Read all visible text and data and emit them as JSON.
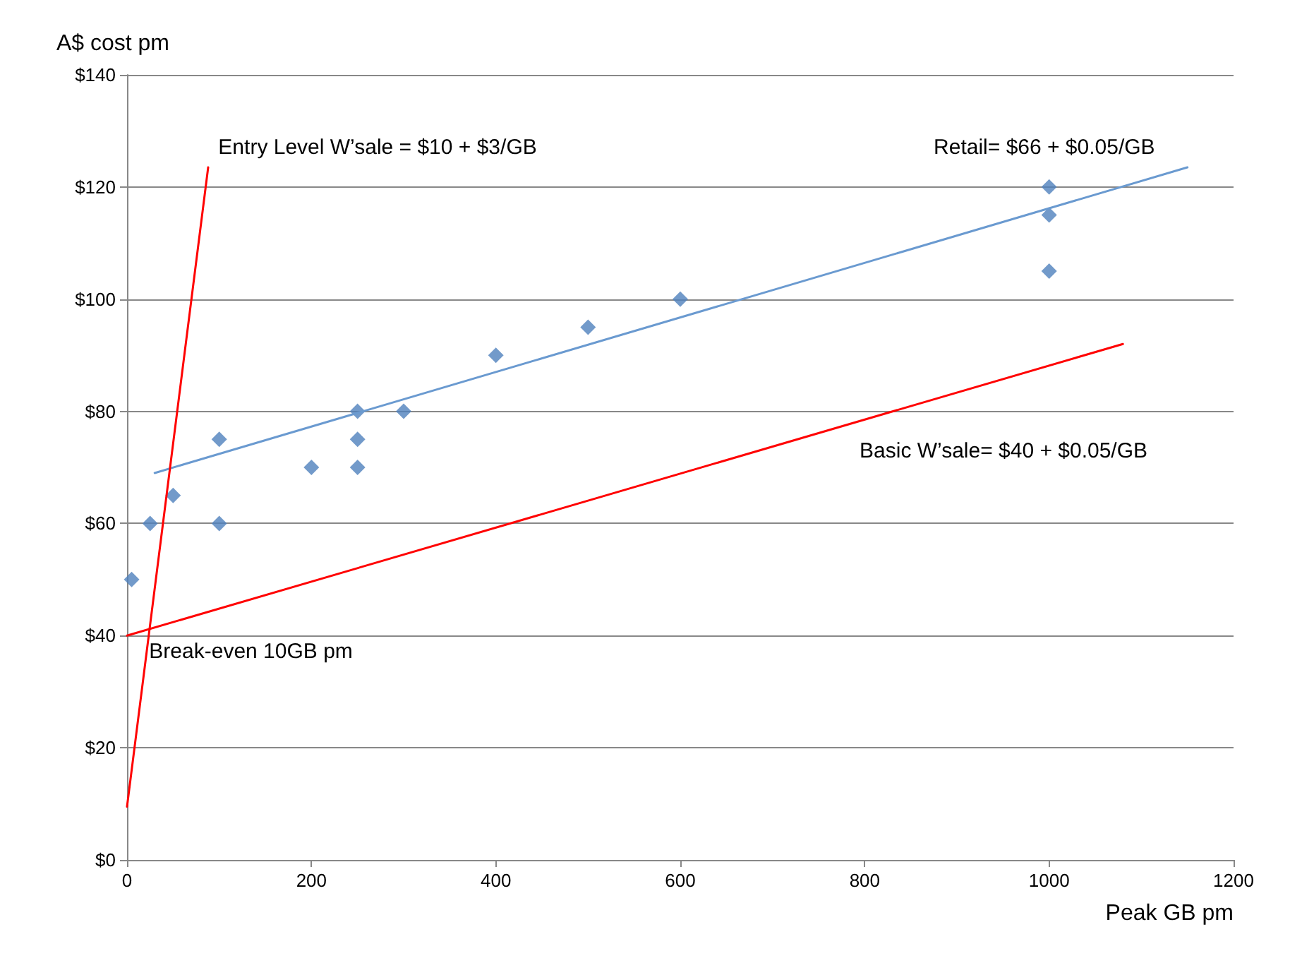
{
  "chart_data": {
    "type": "scatter",
    "xlabel": "Peak GB pm",
    "ylabel": "A$ cost pm",
    "xlim": [
      0,
      1200
    ],
    "xticks": [
      0,
      200,
      400,
      600,
      800,
      1000,
      1200
    ],
    "ylim": [
      0,
      140
    ],
    "yticks": [
      {
        "value": 0,
        "label": "$0"
      },
      {
        "value": 20,
        "label": "$20"
      },
      {
        "value": 40,
        "label": "$40"
      },
      {
        "value": 60,
        "label": "$60"
      },
      {
        "value": 80,
        "label": "$80"
      },
      {
        "value": 100,
        "label": "$100"
      },
      {
        "value": 120,
        "label": "$120"
      },
      {
        "value": 140,
        "label": "$140"
      }
    ],
    "grid": "y",
    "series": [
      {
        "marker": "diamond",
        "color": "#4f81bd",
        "x": [
          5,
          25,
          50,
          100,
          100,
          200,
          250,
          250,
          250,
          300,
          400,
          500,
          600,
          1000,
          1000,
          1000
        ],
        "values": [
          50,
          60,
          65,
          75,
          60,
          70,
          80,
          75,
          70,
          80,
          90,
          95,
          100,
          120,
          115,
          105
        ]
      },
      {
        "type": "line",
        "marker": "none",
        "color": "#6a9ad0",
        "x": [
          30,
          1150
        ],
        "values": [
          69,
          123.5
        ]
      },
      {
        "type": "line",
        "marker": "none",
        "color": "#ff0000",
        "x": [
          0,
          88
        ],
        "values": [
          9.5,
          123.5
        ]
      },
      {
        "type": "line",
        "marker": "none",
        "color": "#ff0000",
        "x": [
          0,
          1080
        ],
        "values": [
          40,
          92
        ]
      }
    ],
    "annotations": [
      "Entry Level W’sale = $10 + $3/GB",
      "Retail= $66 + $0.05/GB",
      "Basic W’sale= $40 + $0.05/GB",
      "Break-even 10GB pm"
    ]
  }
}
